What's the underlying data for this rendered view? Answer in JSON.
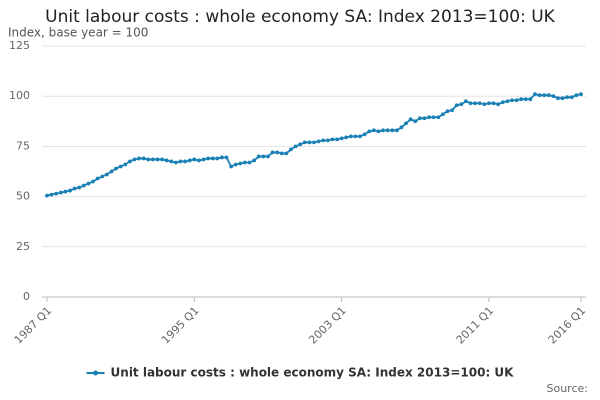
{
  "chart_data": {
    "type": "line",
    "title": "Unit labour costs : whole economy SA: Index 2013=100: UK",
    "subtitle": "Index, base year = 100",
    "source": "Source:",
    "categories": [
      "1987 Q1",
      null,
      null,
      null,
      null,
      null,
      null,
      null,
      null,
      null,
      null,
      null,
      null,
      null,
      null,
      null,
      null,
      null,
      null,
      null,
      null,
      null,
      null,
      null,
      null,
      null,
      null,
      null,
      null,
      null,
      null,
      null,
      "1995 Q1",
      null,
      null,
      null,
      null,
      null,
      null,
      null,
      null,
      null,
      null,
      null,
      null,
      null,
      null,
      null,
      null,
      null,
      null,
      null,
      null,
      null,
      null,
      null,
      null,
      null,
      null,
      null,
      null,
      null,
      null,
      null,
      "2003 Q1",
      null,
      null,
      null,
      null,
      null,
      null,
      null,
      null,
      null,
      null,
      null,
      null,
      null,
      null,
      null,
      null,
      null,
      null,
      null,
      null,
      null,
      null,
      null,
      null,
      null,
      null,
      null,
      null,
      null,
      null,
      null,
      "2011 Q1",
      null,
      null,
      null,
      null,
      null,
      null,
      null,
      null,
      null,
      null,
      null,
      null,
      null,
      null,
      null,
      null,
      null,
      null,
      null,
      "2016 Q1"
    ],
    "series": [
      {
        "name": "Unit labour costs : whole economy SA: Index 2013=100: UK",
        "color": "#1a80b6",
        "values": [
          50.5,
          51,
          51.5,
          52,
          52.5,
          53,
          54,
          54.5,
          55.5,
          56.5,
          57.5,
          59,
          60,
          61,
          62.5,
          64,
          65,
          66,
          67.5,
          68.5,
          69,
          69,
          68.5,
          68.5,
          68.5,
          68.5,
          68,
          67.5,
          67,
          67.5,
          67.5,
          68,
          68.5,
          68,
          68.5,
          69,
          69,
          69,
          69.5,
          69.5,
          65,
          66,
          66.5,
          67,
          67,
          68,
          70,
          70,
          70,
          72,
          72,
          71.5,
          71.5,
          73.5,
          75,
          76,
          77,
          77,
          77,
          77.5,
          78,
          78,
          78.5,
          78.5,
          79,
          79.5,
          80,
          80,
          80,
          81,
          82.5,
          83,
          82.5,
          83,
          83,
          83,
          83,
          84.5,
          86.5,
          88.5,
          87.5,
          89,
          89,
          89.5,
          89.5,
          89.5,
          91,
          92.5,
          93,
          95.5,
          96,
          97.5,
          96.5,
          96.5,
          96.5,
          96,
          96.5,
          96.5,
          96,
          97,
          97.5,
          98,
          98,
          98.5,
          98.5,
          98.5,
          101,
          100.5,
          100.5,
          100.5,
          100,
          99,
          99,
          99.5,
          99.5,
          100.5,
          101
        ]
      }
    ],
    "ylim": [
      0,
      125
    ],
    "yticks": [
      0,
      25,
      50,
      75,
      100,
      125
    ],
    "grid": true,
    "legend": "bottom"
  }
}
